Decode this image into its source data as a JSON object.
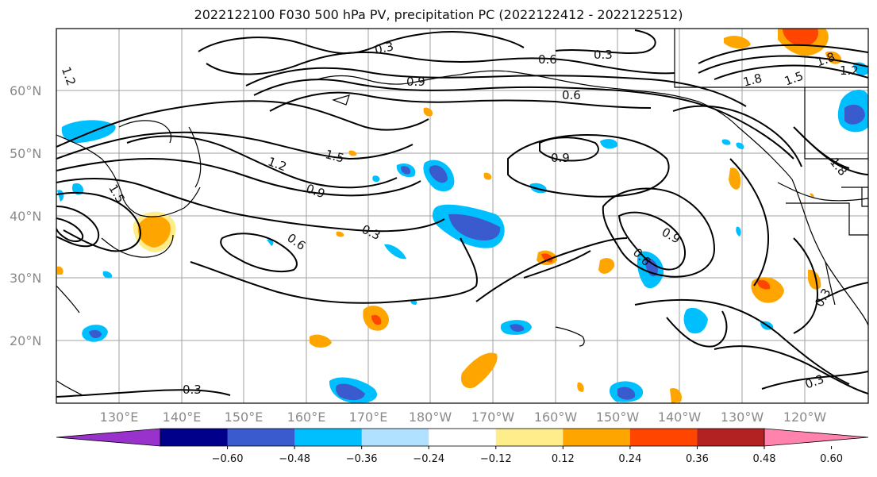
{
  "title": "2022122100 F030 500 hPa PV, precipitation PC (2022122412 - 2022122512)",
  "lat_labels": [
    "60°N",
    "50°N",
    "40°N",
    "30°N",
    "20°N"
  ],
  "lon_labels": [
    "130°E",
    "140°E",
    "150°E",
    "160°E",
    "170°E",
    "180°W",
    "170°W",
    "160°W",
    "150°W",
    "140°W",
    "130°W",
    "120°W"
  ],
  "contour_labels": [
    "0.3",
    "0.6",
    "0.3",
    "0.9",
    "0.6",
    "1.2",
    "1.5",
    "0.9",
    "1.5",
    "1.2",
    "0.9",
    "0.3",
    "0.6",
    "0.9",
    "0.6",
    "1.8",
    "1.5",
    "1.8",
    "0.3",
    "0.3",
    "0.3",
    "1.2",
    "1.8"
  ],
  "colorbar": {
    "ticks": [
      "−0.60",
      "−0.48",
      "−0.36",
      "−0.24",
      "−0.12",
      "0.12",
      "0.24",
      "0.36",
      "0.48",
      "0.60"
    ],
    "colors": [
      "#9932cc",
      "#00008b",
      "#3a5bcd",
      "#00bfff",
      "#b0e2ff",
      "#ffffff",
      "#ffec8b",
      "#ffa500",
      "#ff4500",
      "#b22222",
      "#ff83ac"
    ]
  },
  "fill_colors": {
    "blue_light": "#00bfff",
    "blue_mid": "#3a5bcd",
    "orange": "#ffa500",
    "red": "#ff4500",
    "yellow": "#ffec8b",
    "contour": "#000000",
    "grid": "#999999"
  }
}
